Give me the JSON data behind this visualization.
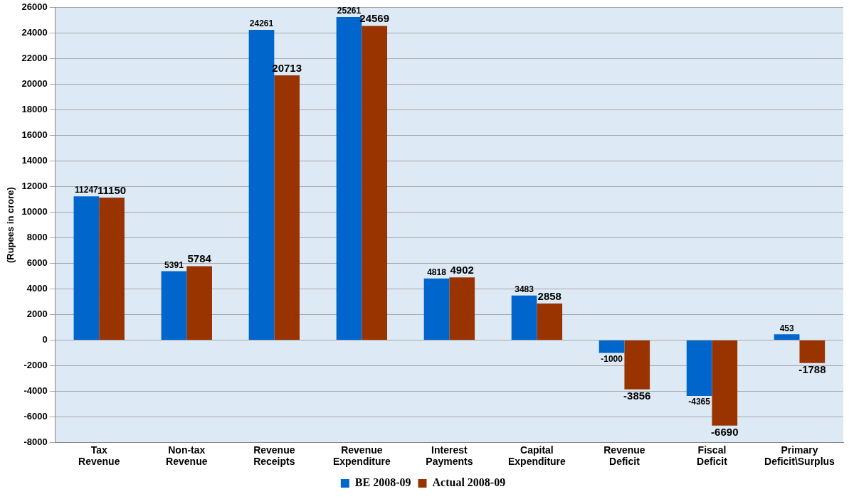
{
  "chart_data": {
    "type": "bar",
    "ylabel": "(Rupees in crore)",
    "categories": [
      "Tax Revenue",
      "Non-tax Revenue",
      "Revenue Receipts",
      "Revenue Expenditure",
      "Interest Payments",
      "Capital Expenditure",
      "Revenue Deficit",
      "Fiscal Deficit",
      "Primary Deficit\\Surplus"
    ],
    "series": [
      {
        "name": "BE 2008-09",
        "color": "#0066cc",
        "values": [
          11247,
          5391,
          24261,
          25261,
          4818,
          3483,
          -1000,
          -4365,
          453
        ]
      },
      {
        "name": "Actual 2008-09",
        "color": "#993300",
        "values": [
          11150,
          5784,
          20713,
          24569,
          4902,
          2858,
          -3856,
          -6690,
          -1788
        ]
      }
    ],
    "ylim": [
      -8000,
      26000
    ],
    "yticks": [
      -8000,
      -6000,
      -4000,
      -2000,
      0,
      2000,
      4000,
      6000,
      8000,
      10000,
      12000,
      14000,
      16000,
      18000,
      20000,
      22000,
      24000,
      26000
    ],
    "grid": "y",
    "legend": "bottom",
    "data_labels": true
  }
}
